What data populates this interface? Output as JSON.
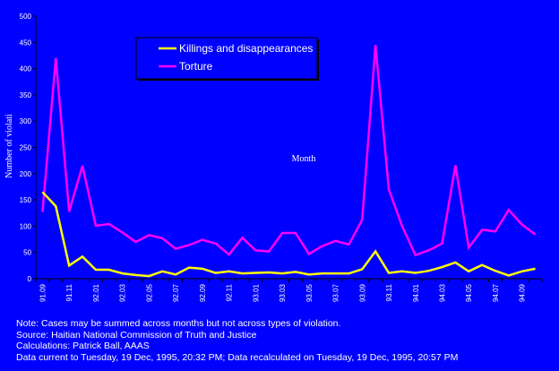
{
  "chart_data": {
    "type": "line",
    "xlabel": "Month",
    "ylabel": "Number of violati",
    "ylim": [
      0,
      500
    ],
    "yticks": [
      0,
      50,
      100,
      150,
      200,
      250,
      300,
      350,
      400,
      450,
      500
    ],
    "ytick_labels": [
      "0",
      "50",
      "100",
      "150",
      "200",
      "250",
      "300",
      "350",
      "400",
      "450",
      "500"
    ],
    "grid": false,
    "legend_position": "top-center",
    "categories": [
      "91.09",
      "91.10",
      "91.11",
      "91.12",
      "92.01",
      "92.02",
      "92.03",
      "92.04",
      "92.05",
      "92.06",
      "92.07",
      "92.08",
      "92.09",
      "92.10",
      "92.11",
      "92.12",
      "93.01",
      "93.02",
      "93.03",
      "93.04",
      "93.05",
      "93.06",
      "93.07",
      "93.08",
      "93.09",
      "93.10",
      "93.11",
      "93.12",
      "94.01",
      "94.02",
      "94.03",
      "94.04",
      "94.05",
      "94.06",
      "94.07",
      "94.08",
      "94.09",
      "94.10"
    ],
    "x_tick_labels": [
      "91.09",
      "91.11",
      "92.01",
      "92.03",
      "92.05",
      "92.07",
      "92.09",
      "92.11",
      "93.01",
      "93.03",
      "93.05",
      "93.07",
      "93.09",
      "93.11",
      "94.01",
      "94.03",
      "94.05",
      "94.07",
      "94.09"
    ],
    "series": [
      {
        "name": "Killings and disappearances",
        "color": "#FFFF00",
        "values": [
          165,
          138,
          25,
          42,
          17,
          17,
          10,
          7,
          5,
          14,
          8,
          21,
          19,
          11,
          14,
          10,
          11,
          12,
          10,
          13,
          8,
          10,
          10,
          10,
          18,
          52,
          11,
          14,
          11,
          15,
          22,
          31,
          14,
          26,
          15,
          6,
          14,
          19
        ]
      },
      {
        "name": "Torture",
        "color": "#FF00FF",
        "values": [
          127,
          420,
          128,
          215,
          101,
          104,
          88,
          70,
          83,
          77,
          57,
          64,
          74,
          67,
          46,
          78,
          54,
          52,
          87,
          87,
          47,
          62,
          72,
          65,
          112,
          445,
          170,
          100,
          45,
          54,
          67,
          216,
          59,
          93,
          90,
          131,
          103,
          84
        ]
      }
    ]
  },
  "notes": [
    "Note: Cases may be summed across months but not across types of violation.",
    "Source: Haitian National Commission of Truth and Justice",
    "Calculations: Patrick Ball, AAAS",
    "Data current to Tuesday, 19 Dec, 1995, 20:32 PM; Data recalculated on Tuesday, 19 Dec, 1995, 20:57 PM"
  ]
}
